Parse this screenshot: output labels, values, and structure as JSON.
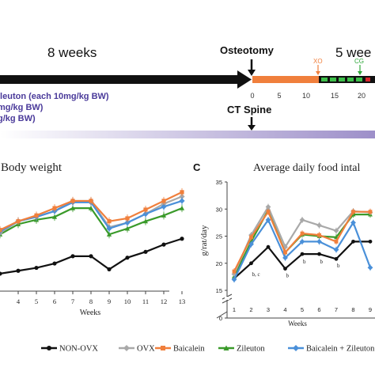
{
  "timeline": {
    "weeks_left_label": "8 weeks",
    "weeks_right_label": "5 wee",
    "osteotomy_label": "Osteotomy",
    "ct_spine_label": "CT Spine",
    "treatment_lines": [
      "ileuton (each 10mg/kg BW)",
      "mg/kg BW)",
      "g/kg BW)"
    ],
    "scale_ticks": [
      "0",
      "5",
      "10",
      "15",
      "20"
    ],
    "xo_label": "XO",
    "cg_label": "CG",
    "colors": {
      "main_arrow": "#111111",
      "orange_bar": "#f07f3c",
      "green_seg": "#3dbf4a",
      "red_seg": "#d9252b",
      "xo": "#f07f3c",
      "cg": "#2ea83a",
      "purple_text": "#4a3a9a",
      "gradient_start": "#ffffff",
      "gradient_end": "#9d8fc9"
    }
  },
  "panel_b": {
    "title": "Body weight",
    "xlabel": "Weeks",
    "tick_labels": [
      "4",
      "5",
      "6",
      "7",
      "8",
      "9",
      "10",
      "11",
      "12",
      "13"
    ]
  },
  "panel_c": {
    "letter": "C",
    "title": "Average daily food intal",
    "ylabel": "g/rat/day",
    "xlabel": "Weeks",
    "y_ticks": [
      "0",
      "15",
      "20",
      "25",
      "30",
      "35"
    ],
    "x_ticks": [
      "1",
      "2",
      "3",
      "4",
      "5",
      "6",
      "7",
      "8",
      "9"
    ],
    "annotations": [
      {
        "text": "b, c",
        "x": 2,
        "y": 17.6
      },
      {
        "text": "b",
        "x": 4,
        "y": 17.4
      },
      {
        "text": "b",
        "x": 5,
        "y": 20.0
      },
      {
        "text": "b",
        "x": 6,
        "y": 20.0
      },
      {
        "text": "b",
        "x": 7,
        "y": 19.2
      }
    ]
  },
  "legend": [
    {
      "name": "NON-OVX",
      "color": "#111111",
      "marker": "circle"
    },
    {
      "name": "OVX",
      "color": "#a9a9a9",
      "marker": "diamond"
    },
    {
      "name": "Baicalein",
      "color": "#f07f3c",
      "marker": "square"
    },
    {
      "name": "Zileuton",
      "color": "#3a9a2a",
      "marker": "triangle"
    },
    {
      "name": "Baicalein + Zileuton",
      "color": "#4a90d9",
      "marker": "diamond"
    }
  ],
  "chart_data": [
    {
      "type": "line",
      "title": "Body weight",
      "xlabel": "Weeks",
      "x": [
        3,
        4,
        5,
        6,
        7,
        8,
        9,
        10,
        11,
        12,
        13
      ],
      "series": [
        {
          "name": "NON-OVX",
          "values": [
            302,
            304,
            306,
            309,
            314,
            314,
            305,
            313,
            317,
            322,
            326
          ]
        },
        {
          "name": "OVX",
          "values": [
            330,
            338,
            341,
            345,
            352,
            352,
            334,
            337,
            343,
            350,
            355
          ]
        },
        {
          "name": "Baicalein",
          "values": [
            332,
            338,
            342,
            347,
            352,
            352,
            338,
            340,
            346,
            352,
            358
          ]
        },
        {
          "name": "Zileuton",
          "values": [
            329,
            336,
            339,
            341,
            347,
            347,
            329,
            333,
            338,
            342,
            347
          ]
        },
        {
          "name": "Baicalein + Zileuton",
          "values": [
            331,
            338,
            341,
            345,
            351,
            351,
            333,
            337,
            343,
            348,
            352
          ]
        }
      ],
      "ylim": [
        290,
        365
      ]
    },
    {
      "type": "line",
      "title": "Average daily food intal",
      "xlabel": "Weeks",
      "ylabel": "g/rat/day",
      "x": [
        1,
        2,
        3,
        4,
        5,
        6,
        7,
        8,
        9
      ],
      "series": [
        {
          "name": "NON-OVX",
          "values": [
            17.2,
            20.0,
            23.0,
            19.0,
            21.7,
            21.7,
            20.8,
            24.0,
            24.0
          ]
        },
        {
          "name": "OVX",
          "values": [
            18.0,
            25.2,
            30.4,
            23.0,
            28.0,
            27.0,
            26.0,
            29.6,
            29.4
          ]
        },
        {
          "name": "Baicalein",
          "values": [
            18.5,
            24.8,
            29.5,
            22.0,
            25.5,
            25.2,
            24.0,
            29.5,
            29.5
          ]
        },
        {
          "name": "Zileuton",
          "values": [
            17.6,
            24.0,
            29.8,
            22.0,
            25.3,
            25.0,
            24.8,
            29.0,
            29.0
          ]
        },
        {
          "name": "Baicalein + Zileuton",
          "values": [
            17.0,
            23.5,
            28.0,
            21.0,
            24.0,
            24.0,
            22.5,
            27.5,
            19.2
          ]
        }
      ],
      "ylim": [
        0,
        35
      ]
    }
  ]
}
